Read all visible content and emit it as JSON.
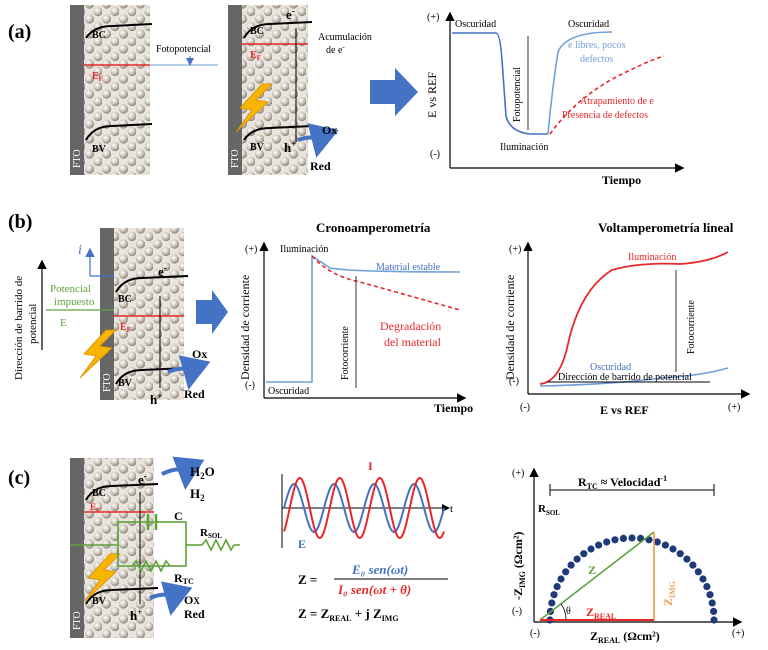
{
  "panels": {
    "a": {
      "label": "(a)",
      "bc": "BC",
      "bv": "BV",
      "ef": "E",
      "ef_sub": "F",
      "fto": "FTO",
      "fotopotencial": "Fotopotencial",
      "acumulacion_1": "Acumulación",
      "acumulacion_2": "de e",
      "electron": "e",
      "hole": "h",
      "ox": "Ox",
      "red": "Red",
      "graph": {
        "plus": "(+)",
        "minus": "(-)",
        "ylabel": "E vs REF",
        "xlabel": "Tiempo",
        "oscuridad_left": "Oscuridad",
        "oscuridad_right": "Oscuridad",
        "fotopotencial": "Fotopotencial",
        "iluminacion": "Iluminación",
        "libres_1": "e libres, pocos",
        "libres_2": "defectos",
        "atrap_1": "Atrapamiento de e",
        "atrap_2": "Presencia de defectos"
      }
    },
    "b": {
      "label": "(b)",
      "dir_1": "Dirección de barrido de",
      "dir_2": "potencial",
      "current": "i",
      "pot_1": "Potencial",
      "pot_2": "impuesto",
      "e": "E",
      "bc": "BC",
      "bv": "BV",
      "ef": "E",
      "ef_sub": "F",
      "fto": "FTO",
      "electron": "e",
      "hole": "h",
      "ox": "Ox",
      "red": "Red",
      "crono": {
        "title": "Cronoamperometría",
        "ylabel": "Densidad de corriente",
        "xlabel": "Tiempo",
        "plus": "(+)",
        "minus": "(-)",
        "iluminacion": "Iluminación",
        "estable": "Material estable",
        "fotocorriente": "Fotocorriente",
        "degr_1": "Degradación",
        "degr_2": "del material",
        "oscuridad": "Oscuridad"
      },
      "volta": {
        "title": "Voltamperometría lineal",
        "ylabel": "Densidad de corriente",
        "xlabel": "E vs REF",
        "plus_y": "(+)",
        "minus_y": "(-)",
        "minus_x": "(-)",
        "plus_x": "(+)",
        "iluminacion": "Iluminación",
        "oscuridad": "Oscuridad",
        "fotocorriente": "Fotocorriente",
        "direccion": "Dirección de barrido de potencial"
      }
    },
    "c": {
      "label": "(c)",
      "h2o": "H2O",
      "h2": "H2",
      "bc": "BC",
      "bv": "BV",
      "ef": "E",
      "ef_sub": "F",
      "fto": "FTO",
      "electron": "e",
      "hole": "h",
      "ox": "Ox",
      "red": "Red",
      "cap": "C",
      "rsol": "R",
      "rsol_sub": "SOL",
      "rtc": "R",
      "rtc_sub": "TC",
      "wave": {
        "i": "I",
        "e": "E",
        "t": "t"
      },
      "eq": {
        "z": "Z =",
        "num": "E₀ sen(ωt)",
        "den": "I₀ sen(ωt + θ)",
        "line2": "Z = Z",
        "real_sub": "REAL",
        "plusj": " + j Z",
        "img_sub": "IMG"
      },
      "nyquist": {
        "rtc_label": "R",
        "rtc_sub": "TC",
        "rtc_tail": " ≈ Velocidad",
        "rtc_exp": "-1",
        "rsol": "R",
        "rsol_sub": "SOL",
        "ylabel": "-Z",
        "ylabel_sub": "IMG",
        "ylabel_unit": " (Ωcm²)",
        "xlabel": "Z",
        "xlabel_sub": "REAL",
        "xlabel_unit": " (Ωcm²)",
        "plus_y": "(+)",
        "minus_y": "(-)",
        "minus_x": "(-)",
        "plus_x": "(+)",
        "z": "Z",
        "zimg": "Z",
        "zimg_sub": "IMG",
        "zreal": "Z",
        "zreal_sub": "REAL",
        "theta": "θ"
      }
    }
  },
  "colors": {
    "blue": "#4472c4",
    "lightblue": "#6fa0dc",
    "red": "#e8272a",
    "green": "#5ea23a",
    "orange": "#f0a050",
    "yellow": "#f7b500",
    "navy": "#1f3a78",
    "gray": "#595959"
  }
}
